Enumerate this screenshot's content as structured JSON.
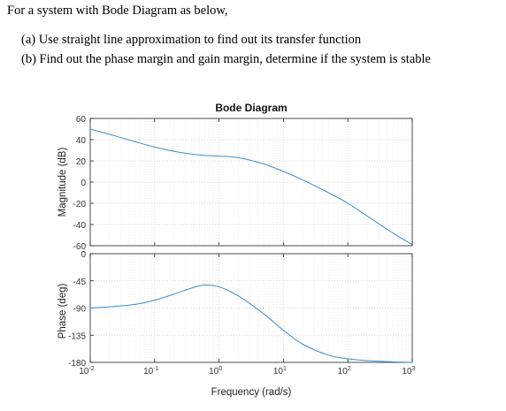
{
  "question": {
    "intro": "For a system with Bode Diagram as below,",
    "part_a": "(a) Use straight line approximation to find out its transfer function",
    "part_b": "(b) Find out the phase margin and gain margin, determine if the system is stable"
  },
  "colors": {
    "curve": "#3a8fd0",
    "axis": "#222222",
    "grid": "#e3e3e3",
    "text": "#333333"
  },
  "chart_data": [
    {
      "type": "line",
      "title": "Bode Diagram",
      "panel": "magnitude",
      "xscale": "log",
      "xlim": [
        0.01,
        1000
      ],
      "ylim": [
        -60,
        60
      ],
      "yticks": [
        60,
        40,
        20,
        0,
        -20,
        -40,
        -60
      ],
      "ylabel": "Magnitude (dB)",
      "x": [
        0.01,
        0.02,
        0.05,
        0.1,
        0.2,
        0.5,
        1,
        2,
        5,
        10,
        20,
        50,
        100,
        200,
        500,
        1000
      ],
      "y": [
        50,
        45,
        38,
        33,
        29,
        25.5,
        24.5,
        23,
        17,
        10,
        2,
        -10,
        -20,
        -32,
        -48,
        -59
      ]
    },
    {
      "type": "line",
      "panel": "phase",
      "xscale": "log",
      "xlim": [
        0.01,
        1000
      ],
      "ylim": [
        -180,
        0
      ],
      "yticks": [
        0,
        -45,
        -90,
        -135,
        -180
      ],
      "ylabel": "Phase (deg)",
      "xlabel": "Frequency (rad/s)",
      "xticks": [
        {
          "base": "10",
          "exp": "-2"
        },
        {
          "base": "10",
          "exp": "-1"
        },
        {
          "base": "10",
          "exp": "0"
        },
        {
          "base": "10",
          "exp": "1"
        },
        {
          "base": "10",
          "exp": "2"
        },
        {
          "base": "10",
          "exp": "3"
        }
      ],
      "x": [
        0.01,
        0.02,
        0.05,
        0.1,
        0.2,
        0.4,
        0.6,
        1,
        2,
        5,
        10,
        20,
        50,
        100,
        200,
        500,
        1000
      ],
      "y": [
        -90,
        -88,
        -84,
        -77,
        -67,
        -56,
        -52,
        -55,
        -70,
        -100,
        -127,
        -150,
        -168,
        -174,
        -177,
        -179,
        -180
      ]
    }
  ]
}
